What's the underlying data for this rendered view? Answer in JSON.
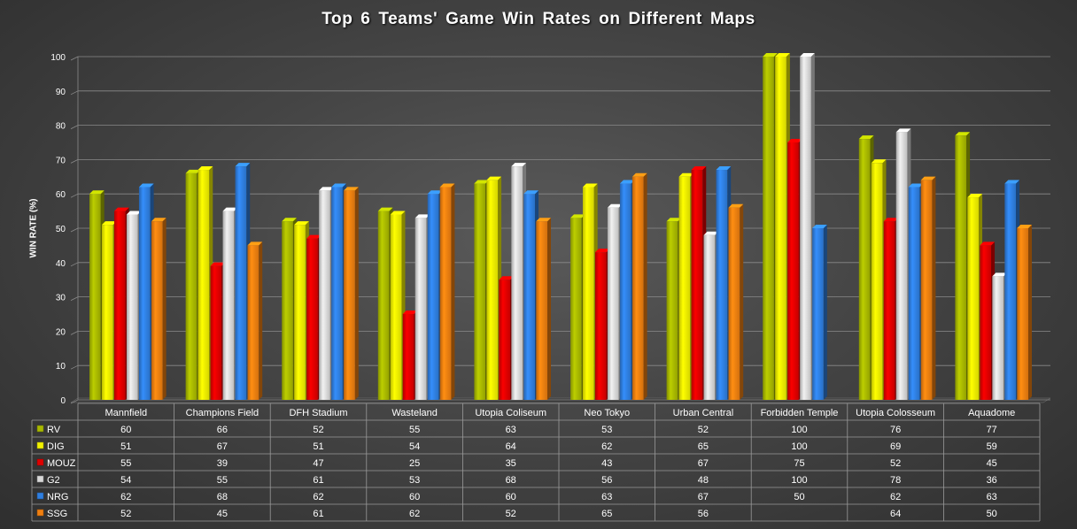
{
  "chart_data": {
    "type": "bar",
    "title": "Top 6 Teams' Game Win Rates on Different Maps",
    "ylabel": "WIN RATE (%)",
    "xlabel": "",
    "ylim": [
      0,
      100
    ],
    "yticks": [
      0,
      10,
      20,
      30,
      40,
      50,
      60,
      70,
      80,
      90,
      100
    ],
    "grid": true,
    "legend": "data-table",
    "categories": [
      "Mannfield",
      "Champions Field",
      "DFH Stadium",
      "Wasteland",
      "Utopia Coliseum",
      "Neo Tokyo",
      "Urban Central",
      "Forbidden Temple",
      "Utopia Colosseum",
      "Aquadome"
    ],
    "series": [
      {
        "name": "RV",
        "color": "#a8b800",
        "values": [
          60,
          66,
          52,
          55,
          63,
          53,
          52,
          100,
          76,
          77
        ]
      },
      {
        "name": "DIG",
        "color": "#f2f200",
        "values": [
          51,
          67,
          51,
          54,
          64,
          62,
          65,
          100,
          69,
          59
        ]
      },
      {
        "name": "MOUZ",
        "color": "#e00000",
        "values": [
          55,
          39,
          47,
          25,
          35,
          43,
          67,
          75,
          52,
          45
        ]
      },
      {
        "name": "G2",
        "color": "#d8d8d8",
        "values": [
          54,
          55,
          61,
          53,
          68,
          56,
          48,
          100,
          78,
          36
        ]
      },
      {
        "name": "NRG",
        "color": "#2f7fe0",
        "values": [
          62,
          68,
          62,
          60,
          60,
          63,
          67,
          50,
          62,
          63
        ]
      },
      {
        "name": "SSG",
        "color": "#f07f10",
        "values": [
          52,
          45,
          61,
          62,
          52,
          65,
          56,
          null,
          64,
          50
        ]
      }
    ]
  }
}
